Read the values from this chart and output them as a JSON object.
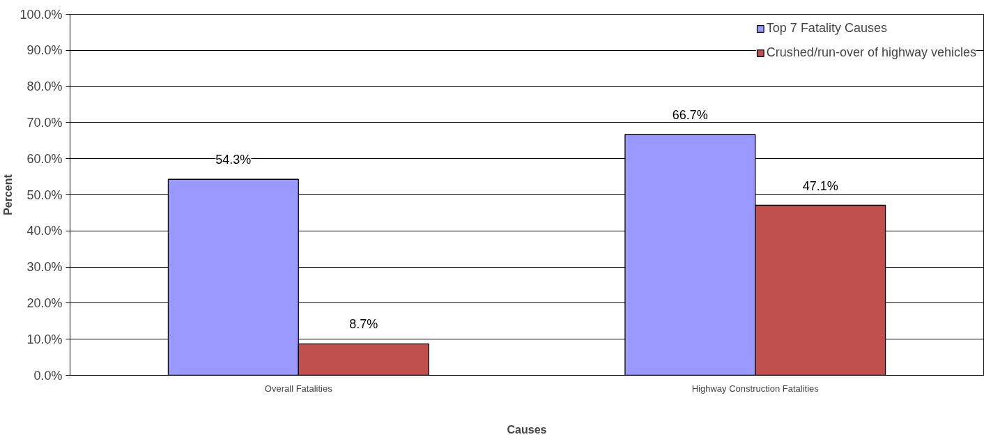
{
  "chart_data": {
    "type": "bar",
    "xlabel": "Causes",
    "ylabel": "Percent",
    "categories": [
      "Overall Fatalities",
      "Highway Construction Fatalities"
    ],
    "series": [
      {
        "name": "Top 7 Fatality Causes",
        "color": "#9999ff",
        "values": [
          54.3,
          66.7
        ],
        "value_labels": [
          "54.3%",
          "66.7%"
        ]
      },
      {
        "name": "Crushed/run-over of highway vehicles",
        "color": "#c0504d",
        "values": [
          8.7,
          47.1
        ],
        "value_labels": [
          "8.7%",
          "47.1%"
        ]
      }
    ],
    "ylim": [
      0,
      100
    ],
    "yticks": [
      {
        "value": 0,
        "label": "0.0%"
      },
      {
        "value": 10,
        "label": "10.0%"
      },
      {
        "value": 20,
        "label": "20.0%"
      },
      {
        "value": 30,
        "label": "30.0%"
      },
      {
        "value": 40,
        "label": "40.0%"
      },
      {
        "value": 50,
        "label": "50.0%"
      },
      {
        "value": 60,
        "label": "60.0%"
      },
      {
        "value": 70,
        "label": "70.0%"
      },
      {
        "value": 80,
        "label": "80.0%"
      },
      {
        "value": 90,
        "label": "90.0%"
      },
      {
        "value": 100,
        "label": "100.0%"
      }
    ],
    "grid": "y",
    "legend": "top right"
  }
}
